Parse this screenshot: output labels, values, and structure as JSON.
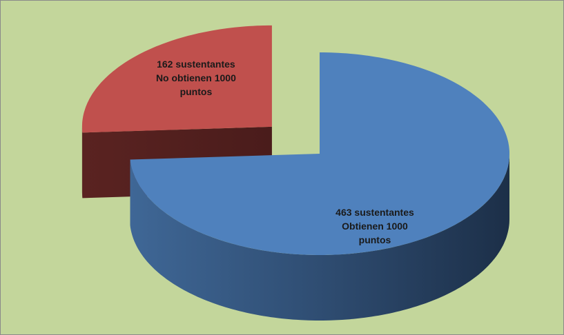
{
  "chart_data": {
    "type": "pie3d",
    "categories": [
      "Obtienen 1000 puntos",
      "No obtienen 1000 puntos"
    ],
    "values": [
      463,
      162
    ],
    "value_labels": [
      "463 sustentantes",
      "162 sustentantes"
    ],
    "colors": [
      "#4f81bd",
      "#c0504d"
    ],
    "exploded": [
      false,
      true
    ]
  }
}
